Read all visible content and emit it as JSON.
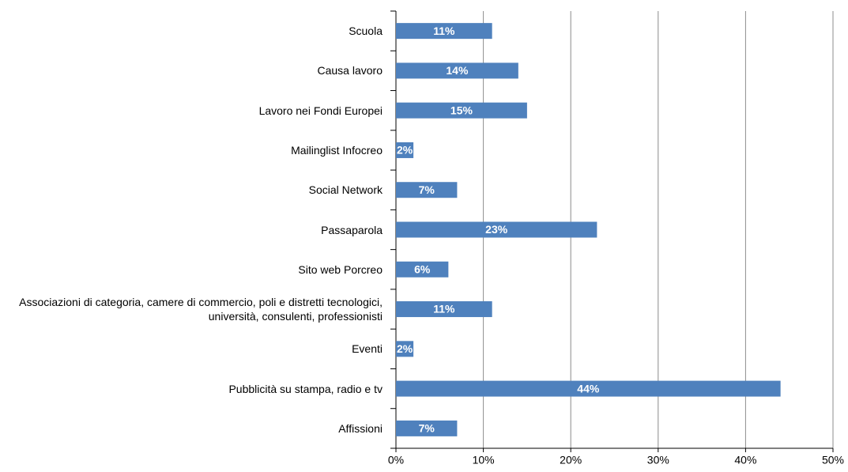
{
  "chart_data": {
    "type": "barh",
    "categories": [
      "Scuola",
      "Causa lavoro",
      "Lavoro nei Fondi Europei",
      "Mailinglist Infocreo",
      "Social Network",
      "Passaparola",
      "Sito web Porcreo",
      "Associazioni di categoria, camere di commercio, poli e distretti tecnologici, università, consulenti, professionisti",
      "Eventi",
      "Pubblicità su stampa, radio e tv",
      "Affissioni"
    ],
    "values": [
      11,
      14,
      15,
      2,
      7,
      23,
      6,
      11,
      2,
      44,
      7
    ],
    "value_labels": [
      "11%",
      "14%",
      "15%",
      "2%",
      "7%",
      "23%",
      "6%",
      "11%",
      "2%",
      "44%",
      "7%"
    ],
    "color": "#4f81bd",
    "xlim": [
      0,
      50
    ],
    "xticks": [
      {
        "value": 0,
        "label": "0%"
      },
      {
        "value": 10,
        "label": "10%"
      },
      {
        "value": 20,
        "label": "20%"
      },
      {
        "value": 30,
        "label": "30%"
      },
      {
        "value": 40,
        "label": "40%"
      },
      {
        "value": 50,
        "label": "50%"
      }
    ],
    "grid": true
  }
}
